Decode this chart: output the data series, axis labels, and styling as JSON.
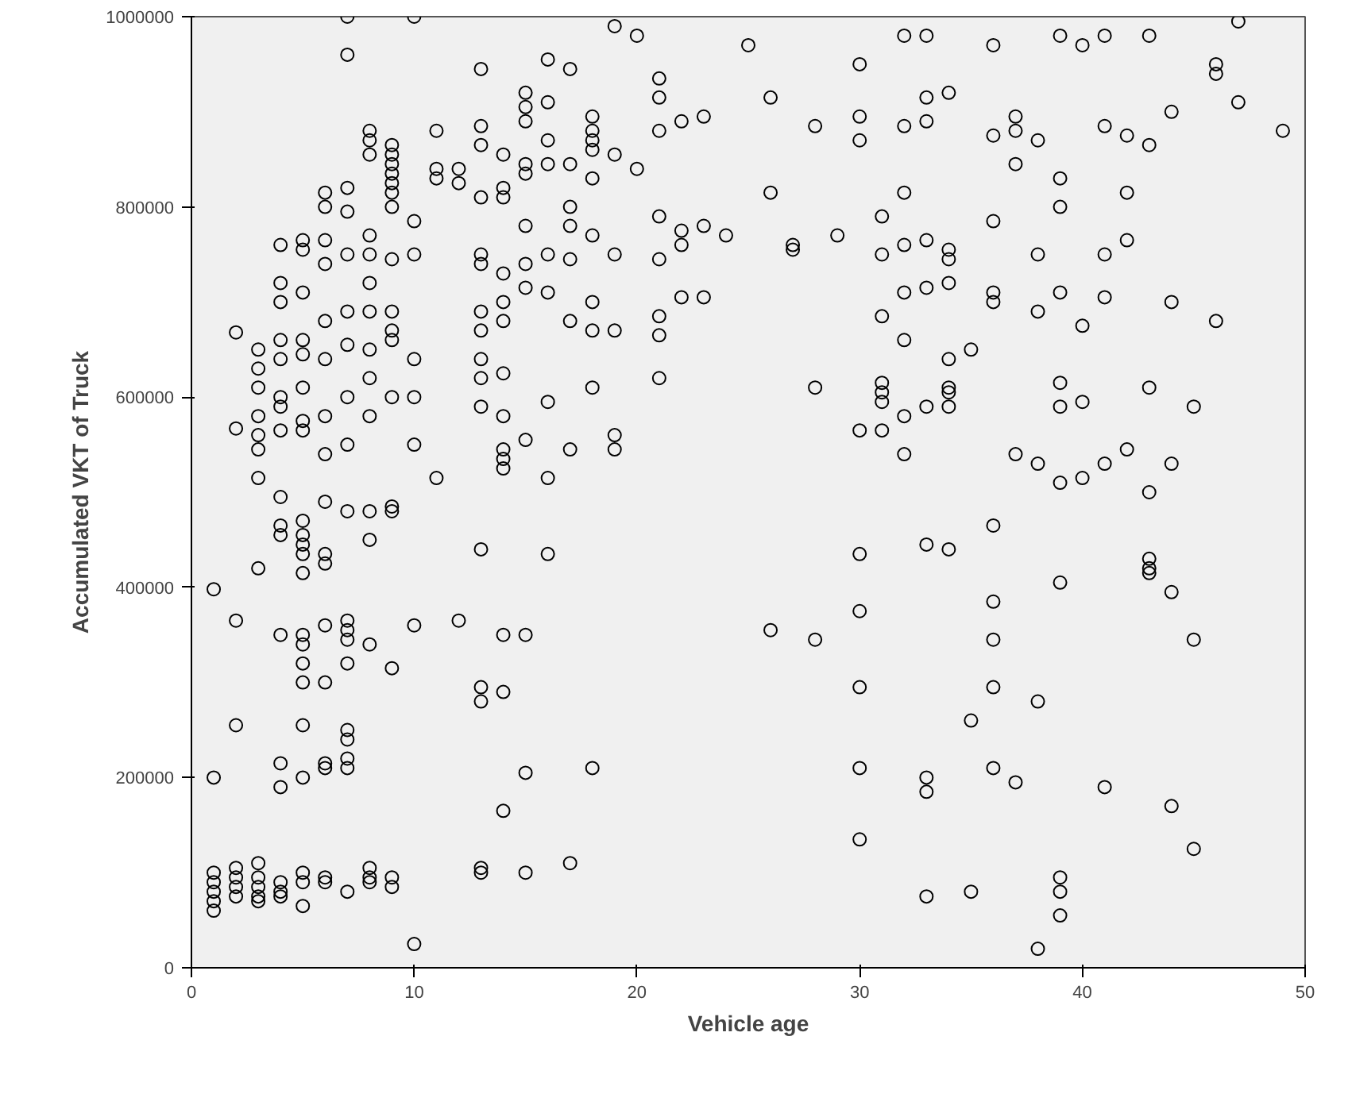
{
  "chart_data": {
    "type": "scatter",
    "xlabel": "Vehicle age",
    "ylabel": "Accumulated VKT of Truck",
    "xlim": [
      0,
      50
    ],
    "ylim": [
      0,
      1000000
    ],
    "xticks": [
      0,
      10,
      20,
      30,
      40,
      50
    ],
    "yticks": [
      0,
      200000,
      400000,
      600000,
      800000,
      1000000
    ],
    "grid": false,
    "marker": "circle",
    "series": [
      {
        "color": "#000000",
        "x": [
          1,
          1,
          1,
          1,
          1,
          1,
          1,
          2,
          2,
          2,
          2,
          2,
          2,
          2,
          2,
          3,
          3,
          3,
          3,
          3,
          3,
          3,
          3,
          3,
          3,
          3,
          3,
          3,
          4,
          4,
          4,
          4,
          4,
          4,
          4,
          4,
          4,
          4,
          4,
          4,
          4,
          4,
          4,
          4,
          4,
          5,
          5,
          5,
          5,
          5,
          5,
          5,
          5,
          5,
          5,
          5,
          5,
          5,
          5,
          5,
          5,
          5,
          5,
          5,
          5,
          5,
          5,
          6,
          6,
          6,
          6,
          6,
          6,
          6,
          6,
          6,
          6,
          6,
          6,
          6,
          6,
          6,
          6,
          6,
          7,
          7,
          7,
          7,
          7,
          7,
          7,
          7,
          7,
          7,
          7,
          7,
          7,
          7,
          7,
          7,
          7,
          7,
          7,
          8,
          8,
          8,
          8,
          8,
          8,
          8,
          8,
          8,
          8,
          8,
          8,
          8,
          8,
          8,
          8,
          9,
          9,
          9,
          9,
          9,
          9,
          9,
          9,
          9,
          9,
          9,
          9,
          9,
          9,
          9,
          9,
          9,
          10,
          10,
          10,
          10,
          10,
          10,
          10,
          10,
          11,
          11,
          11,
          11,
          12,
          12,
          12,
          13,
          13,
          13,
          13,
          13,
          13,
          13,
          13,
          13,
          13,
          13,
          13,
          13,
          13,
          13,
          13,
          14,
          14,
          14,
          14,
          14,
          14,
          14,
          14,
          14,
          14,
          14,
          14,
          14,
          14,
          15,
          15,
          15,
          15,
          15,
          15,
          15,
          15,
          15,
          15,
          15,
          15,
          16,
          16,
          16,
          16,
          16,
          16,
          16,
          16,
          16,
          17,
          17,
          17,
          17,
          17,
          17,
          17,
          17,
          18,
          18,
          18,
          18,
          18,
          18,
          18,
          18,
          18,
          18,
          19,
          19,
          19,
          19,
          19,
          19,
          20,
          20,
          21,
          21,
          21,
          21,
          21,
          21,
          21,
          21,
          22,
          22,
          22,
          22,
          23,
          23,
          23,
          24,
          25,
          26,
          26,
          26,
          27,
          27,
          28,
          28,
          28,
          29,
          30,
          30,
          30,
          30,
          30,
          30,
          30,
          30,
          30,
          31,
          31,
          31,
          31,
          31,
          31,
          31,
          32,
          32,
          32,
          32,
          32,
          32,
          32,
          32,
          33,
          33,
          33,
          33,
          33,
          33,
          33,
          33,
          33,
          33,
          34,
          34,
          34,
          34,
          34,
          34,
          34,
          34,
          34,
          35,
          35,
          35,
          36,
          36,
          36,
          36,
          36,
          36,
          36,
          36,
          36,
          36,
          37,
          37,
          37,
          37,
          37,
          38,
          38,
          38,
          38,
          38,
          38,
          39,
          39,
          39,
          39,
          39,
          39,
          39,
          39,
          39,
          39,
          39,
          40,
          40,
          40,
          40,
          41,
          41,
          41,
          41,
          41,
          41,
          42,
          42,
          42,
          42,
          43,
          43,
          43,
          43,
          43,
          43,
          43,
          44,
          44,
          44,
          44,
          44,
          45,
          45,
          45,
          46,
          46,
          46,
          47,
          47,
          49
        ],
        "values": [
          398000,
          200000,
          100000,
          90000,
          80000,
          70000,
          60000,
          668000,
          567000,
          365000,
          255000,
          105000,
          95000,
          85000,
          75000,
          650000,
          630000,
          610000,
          580000,
          560000,
          545000,
          515000,
          420000,
          110000,
          95000,
          85000,
          75000,
          70000,
          760000,
          720000,
          700000,
          660000,
          640000,
          600000,
          590000,
          565000,
          495000,
          465000,
          455000,
          350000,
          215000,
          190000,
          90000,
          80000,
          75000,
          765000,
          755000,
          710000,
          660000,
          645000,
          610000,
          575000,
          565000,
          470000,
          455000,
          445000,
          435000,
          415000,
          350000,
          340000,
          320000,
          300000,
          255000,
          200000,
          100000,
          90000,
          65000,
          815000,
          800000,
          765000,
          740000,
          680000,
          640000,
          580000,
          540000,
          490000,
          435000,
          425000,
          360000,
          300000,
          215000,
          210000,
          95000,
          90000,
          1000000,
          960000,
          820000,
          795000,
          750000,
          690000,
          655000,
          600000,
          550000,
          480000,
          365000,
          355000,
          345000,
          320000,
          250000,
          240000,
          220000,
          210000,
          80000,
          880000,
          870000,
          855000,
          770000,
          750000,
          720000,
          690000,
          650000,
          620000,
          580000,
          480000,
          450000,
          340000,
          105000,
          95000,
          90000,
          865000,
          855000,
          845000,
          835000,
          825000,
          815000,
          800000,
          745000,
          690000,
          670000,
          660000,
          600000,
          485000,
          480000,
          315000,
          95000,
          85000,
          1000000,
          785000,
          750000,
          640000,
          600000,
          550000,
          360000,
          25000,
          880000,
          840000,
          830000,
          515000,
          840000,
          825000,
          365000,
          945000,
          885000,
          865000,
          810000,
          750000,
          740000,
          690000,
          670000,
          640000,
          620000,
          590000,
          440000,
          295000,
          280000,
          105000,
          100000,
          855000,
          820000,
          810000,
          730000,
          700000,
          680000,
          625000,
          580000,
          545000,
          535000,
          525000,
          350000,
          290000,
          165000,
          920000,
          905000,
          890000,
          845000,
          835000,
          780000,
          740000,
          715000,
          555000,
          350000,
          205000,
          100000,
          955000,
          910000,
          870000,
          845000,
          750000,
          710000,
          595000,
          515000,
          435000,
          945000,
          845000,
          800000,
          780000,
          745000,
          680000,
          545000,
          110000,
          895000,
          880000,
          870000,
          860000,
          830000,
          770000,
          700000,
          670000,
          610000,
          210000,
          990000,
          855000,
          750000,
          670000,
          560000,
          545000,
          980000,
          840000,
          935000,
          915000,
          880000,
          790000,
          745000,
          685000,
          665000,
          620000,
          890000,
          775000,
          760000,
          705000,
          895000,
          780000,
          705000,
          770000,
          970000,
          915000,
          815000,
          355000,
          760000,
          755000,
          885000,
          610000,
          345000,
          770000,
          950000,
          895000,
          870000,
          565000,
          435000,
          375000,
          295000,
          210000,
          135000,
          790000,
          750000,
          685000,
          615000,
          605000,
          595000,
          565000,
          980000,
          885000,
          815000,
          760000,
          710000,
          660000,
          580000,
          540000,
          980000,
          915000,
          890000,
          765000,
          715000,
          590000,
          445000,
          200000,
          185000,
          75000,
          920000,
          755000,
          745000,
          720000,
          640000,
          610000,
          605000,
          590000,
          440000,
          650000,
          260000,
          80000,
          970000,
          875000,
          785000,
          710000,
          700000,
          465000,
          385000,
          345000,
          295000,
          210000,
          895000,
          880000,
          845000,
          540000,
          195000,
          870000,
          750000,
          690000,
          530000,
          280000,
          20000,
          980000,
          830000,
          800000,
          710000,
          615000,
          590000,
          510000,
          405000,
          95000,
          80000,
          55000,
          970000,
          675000,
          595000,
          515000,
          980000,
          885000,
          750000,
          705000,
          530000,
          190000,
          875000,
          815000,
          765000,
          545000,
          980000,
          865000,
          610000,
          500000,
          430000,
          420000,
          415000,
          900000,
          700000,
          530000,
          395000,
          170000,
          590000,
          345000,
          125000,
          950000,
          940000,
          680000,
          995000,
          910000,
          880000
        ]
      }
    ]
  }
}
